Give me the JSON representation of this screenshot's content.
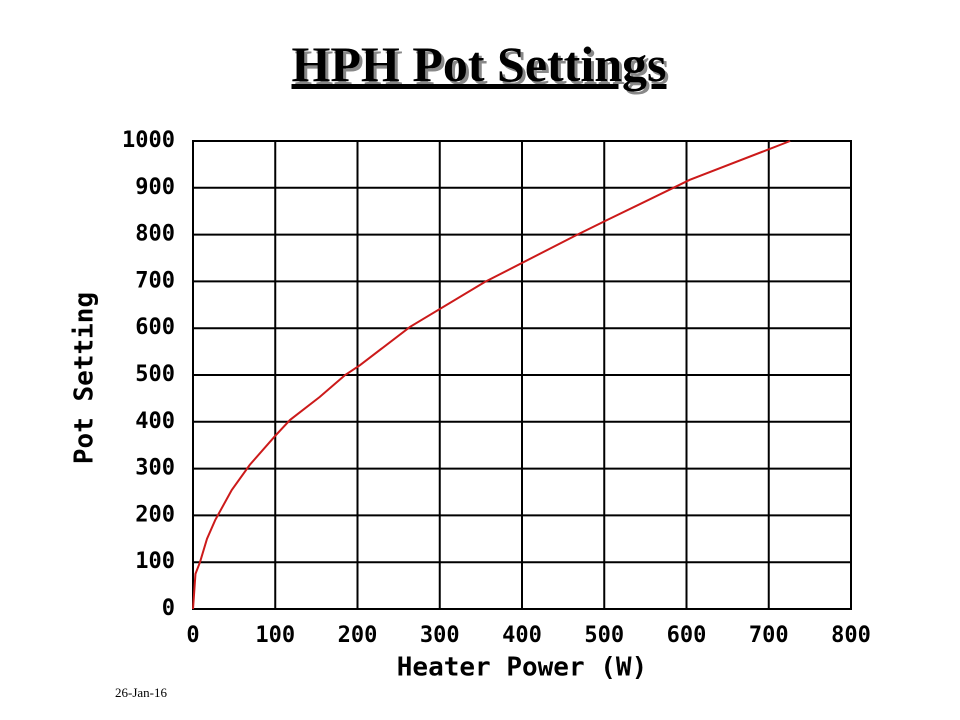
{
  "chart_data": {
    "type": "line",
    "title": "HPH Pot Settings",
    "x_label": "Heater Power (W)",
    "y_label": "Pot Setting",
    "x": [
      0,
      3,
      8.5,
      17,
      27,
      47,
      69,
      100,
      118,
      154,
      185,
      203,
      264,
      355,
      464,
      501,
      604,
      726
    ],
    "values": [
      0,
      75,
      100,
      150,
      190,
      254,
      308,
      370,
      404,
      453,
      500,
      521,
      603,
      699,
      797,
      829,
      917,
      1000
    ],
    "color": "#cc1a1a",
    "xlim": [
      0,
      800
    ],
    "xticks": [
      0,
      100,
      200,
      300,
      400,
      500,
      600,
      700,
      800
    ],
    "ylim": [
      0,
      1000
    ],
    "yticks": [
      0,
      100,
      200,
      300,
      400,
      500,
      600,
      700,
      800,
      900,
      1000
    ],
    "grid": true
  },
  "footer": "26-Jan-16"
}
